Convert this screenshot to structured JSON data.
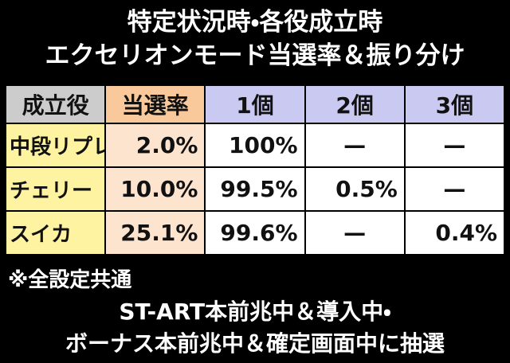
{
  "title": [
    "特定状況時・各役成立時",
    "エクセリオンモード当選率＆振り分け"
  ],
  "table": {
    "header": [
      "成立役",
      "当選率",
      "1個",
      "2個",
      "3個"
    ],
    "rows": [
      [
        "中段リプレイ",
        "2.0%",
        "100%",
        "—",
        "—"
      ],
      [
        "チェリー",
        "10.0%",
        "99.5%",
        "0.5%",
        "—"
      ],
      [
        "スイカ",
        "25.1%",
        "99.6%",
        "—",
        "0.4%"
      ]
    ]
  },
  "footer": {
    "note": "※全設定共通",
    "lines": [
      "ST-ART本前兆中＆導入中・",
      "ボーナス本前兆中＆確定画面中に抽選"
    ]
  }
}
